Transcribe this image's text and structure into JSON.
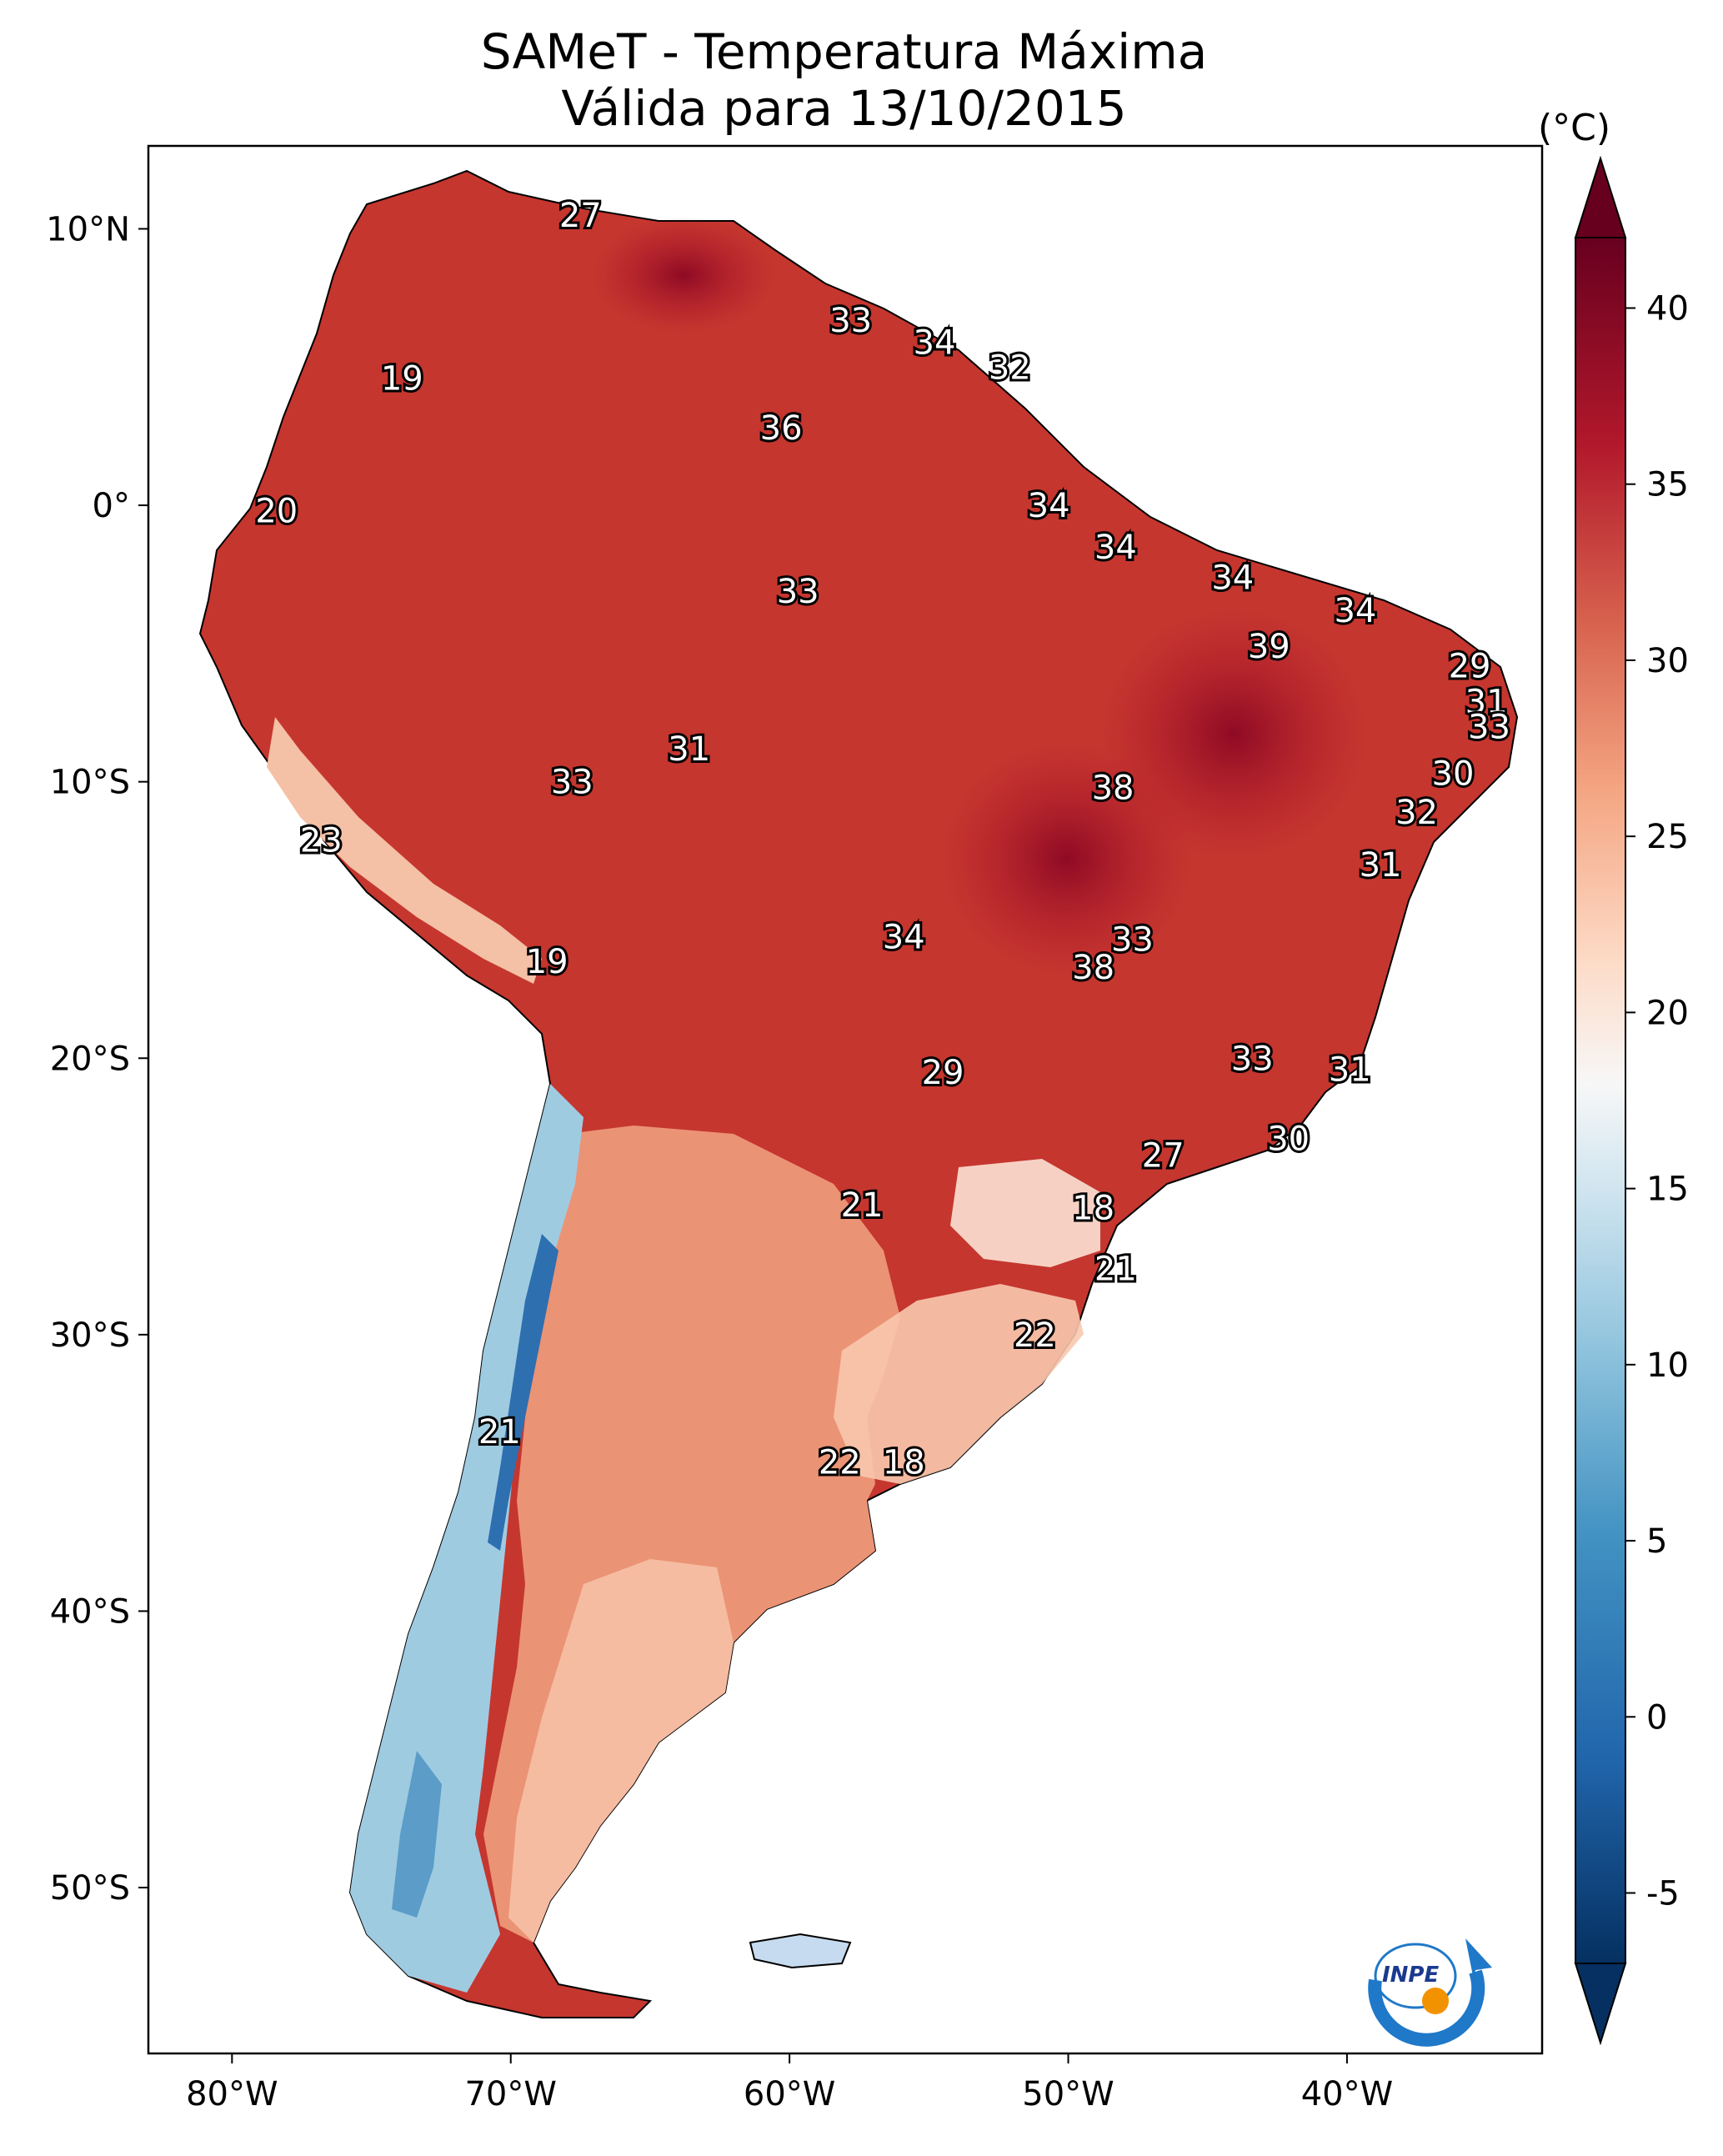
{
  "title": {
    "line1": "SAMeT - Temperatura Máxima",
    "line2": "Válida para 13/10/2015"
  },
  "map": {
    "lon_range": [
      -83,
      -33
    ],
    "lat_range": [
      -56,
      13
    ],
    "lon_ticks": [
      {
        "value": -80,
        "label": "80°W"
      },
      {
        "value": -70,
        "label": "70°W"
      },
      {
        "value": -60,
        "label": "60°W"
      },
      {
        "value": -50,
        "label": "50°W"
      },
      {
        "value": -40,
        "label": "40°W"
      }
    ],
    "lat_ticks": [
      {
        "value": 10,
        "label": "10°N"
      },
      {
        "value": 0,
        "label": "0°"
      },
      {
        "value": -10,
        "label": "10°S"
      },
      {
        "value": -20,
        "label": "20°S"
      },
      {
        "value": -30,
        "label": "30°S"
      },
      {
        "value": -40,
        "label": "40°S"
      },
      {
        "value": -50,
        "label": "50°S"
      }
    ],
    "station_labels": [
      {
        "text": "27",
        "lon": -67.5,
        "lat": 10.5
      },
      {
        "text": "33",
        "lon": -57.8,
        "lat": 6.7
      },
      {
        "text": "34",
        "lon": -54.8,
        "lat": 5.9
      },
      {
        "text": "32",
        "lon": -52.1,
        "lat": 5.0
      },
      {
        "text": "19",
        "lon": -73.9,
        "lat": 4.6
      },
      {
        "text": "36",
        "lon": -60.3,
        "lat": 2.8
      },
      {
        "text": "20",
        "lon": -78.4,
        "lat": -0.2
      },
      {
        "text": "34",
        "lon": -50.7,
        "lat": 0.0
      },
      {
        "text": "34",
        "lon": -48.3,
        "lat": -1.5
      },
      {
        "text": "34",
        "lon": -44.1,
        "lat": -2.6
      },
      {
        "text": "33",
        "lon": -59.7,
        "lat": -3.1
      },
      {
        "text": "34",
        "lon": -39.7,
        "lat": -3.8
      },
      {
        "text": "39",
        "lon": -42.8,
        "lat": -5.1
      },
      {
        "text": "29",
        "lon": -35.6,
        "lat": -5.8
      },
      {
        "text": "31",
        "lon": -35.0,
        "lat": -7.1
      },
      {
        "text": "33",
        "lon": -34.9,
        "lat": -8.0
      },
      {
        "text": "31",
        "lon": -63.6,
        "lat": -8.8
      },
      {
        "text": "30",
        "lon": -36.2,
        "lat": -9.7
      },
      {
        "text": "33",
        "lon": -67.8,
        "lat": -10.0
      },
      {
        "text": "38",
        "lon": -48.4,
        "lat": -10.2
      },
      {
        "text": "32",
        "lon": -37.5,
        "lat": -11.1
      },
      {
        "text": "23",
        "lon": -76.8,
        "lat": -12.1
      },
      {
        "text": "31",
        "lon": -38.8,
        "lat": -13.0
      },
      {
        "text": "34",
        "lon": -55.9,
        "lat": -15.6
      },
      {
        "text": "33",
        "lon": -47.7,
        "lat": -15.7
      },
      {
        "text": "19",
        "lon": -68.7,
        "lat": -16.5
      },
      {
        "text": "38",
        "lon": -49.1,
        "lat": -16.7
      },
      {
        "text": "33",
        "lon": -43.4,
        "lat": -20.0
      },
      {
        "text": "31",
        "lon": -39.9,
        "lat": -20.4
      },
      {
        "text": "29",
        "lon": -54.5,
        "lat": -20.5
      },
      {
        "text": "30",
        "lon": -42.1,
        "lat": -22.9
      },
      {
        "text": "27",
        "lon": -46.6,
        "lat": -23.5
      },
      {
        "text": "21",
        "lon": -57.4,
        "lat": -25.3
      },
      {
        "text": "18",
        "lon": -49.1,
        "lat": -25.4
      },
      {
        "text": "21",
        "lon": -48.3,
        "lat": -27.6
      },
      {
        "text": "22",
        "lon": -51.2,
        "lat": -30.0
      },
      {
        "text": "21",
        "lon": -70.4,
        "lat": -33.5
      },
      {
        "text": "22",
        "lon": -58.2,
        "lat": -34.6
      },
      {
        "text": "18",
        "lon": -55.9,
        "lat": -34.6
      }
    ]
  },
  "colorbar": {
    "unit": "(°C)",
    "min": -7,
    "max": 42,
    "ticks": [
      {
        "value": 40,
        "label": "40"
      },
      {
        "value": 35,
        "label": "35"
      },
      {
        "value": 30,
        "label": "30"
      },
      {
        "value": 25,
        "label": "25"
      },
      {
        "value": 20,
        "label": "20"
      },
      {
        "value": 15,
        "label": "15"
      },
      {
        "value": 10,
        "label": "10"
      },
      {
        "value": 5,
        "label": "5"
      },
      {
        "value": 0,
        "label": "0"
      },
      {
        "value": -5,
        "label": "-5"
      }
    ],
    "colors": [
      "#053061",
      "#2166ac",
      "#4393c3",
      "#92c5de",
      "#d1e5f0",
      "#f7f7f7",
      "#fddbc7",
      "#f4a582",
      "#d6604d",
      "#b2182b",
      "#67001f"
    ]
  },
  "logo": {
    "text": "INPE",
    "colors": {
      "ring": "#1f78c8",
      "dot": "#f39200"
    }
  },
  "colors": {
    "land_hot": "#b2182b",
    "land_warm": "#d6604d",
    "land_mild": "#f4a582",
    "land_cool": "#fddbc7",
    "land_cold": "#92c5de",
    "land_coldest": "#2166ac",
    "border": "#000000"
  }
}
